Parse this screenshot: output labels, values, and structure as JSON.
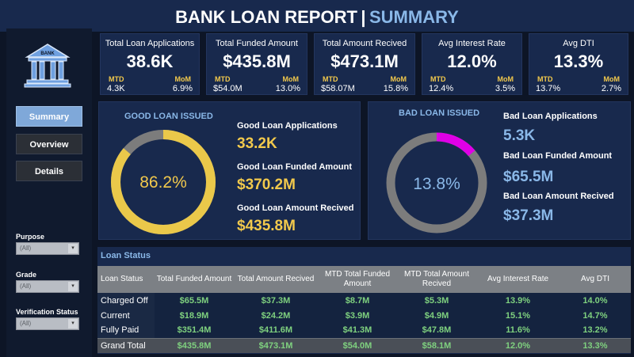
{
  "header": {
    "title": "BANK LOAN REPORT",
    "separator": "|",
    "subtitle": "SUMMARY"
  },
  "logo": {
    "text": "BANK"
  },
  "nav": [
    {
      "label": "Summary",
      "active": true
    },
    {
      "label": "Overview",
      "active": false
    },
    {
      "label": "Details",
      "active": false
    }
  ],
  "filters": [
    {
      "label": "Purpose",
      "value": "(All)"
    },
    {
      "label": "Grade",
      "value": "(All)"
    },
    {
      "label": "Verification Status",
      "value": "(All)"
    }
  ],
  "kpis": [
    {
      "title": "Total Loan Applications",
      "value": "38.6K",
      "mtd_label": "MTD",
      "mom_label": "MoM",
      "mtd": "4.3K",
      "mom": "6.9%"
    },
    {
      "title": "Total Funded Amount",
      "value": "$435.8M",
      "mtd_label": "MTD",
      "mom_label": "MoM",
      "mtd": "$54.0M",
      "mom": "13.0%"
    },
    {
      "title": "Total Amount Recived",
      "value": "$473.1M",
      "mtd_label": "MTD",
      "mom_label": "MoM",
      "mtd": "$58.07M",
      "mom": "15.8%"
    },
    {
      "title": "Avg Interest Rate",
      "value": "12.0%",
      "mtd_label": "MTD",
      "mom_label": "MoM",
      "mtd": "12.4%",
      "mom": "3.5%"
    },
    {
      "title": "Avg DTI",
      "value": "13.3%",
      "mtd_label": "MTD",
      "mom_label": "MoM",
      "mtd": "13.7%",
      "mom": "2.7%"
    }
  ],
  "good_loan": {
    "title": "GOOD LOAN ISSUED",
    "percent": 86.2,
    "percent_label": "86.2%",
    "applications_label": "Good Loan Applications",
    "applications": "33.2K",
    "funded_label": "Good Loan Funded Amount",
    "funded": "$370.2M",
    "received_label": "Good Loan Amount Recived",
    "received": "$435.8M"
  },
  "bad_loan": {
    "title": "BAD LOAN ISSUED",
    "percent": 13.8,
    "percent_label": "13.8%",
    "applications_label": "Bad Loan Applications",
    "applications": "5.3K",
    "funded_label": "Bad Loan Funded Amount",
    "funded": "$65.5M",
    "received_label": "Bad Loan Amount Recived",
    "received": "$37.3M"
  },
  "loan_status": {
    "title": "Loan Status",
    "columns": [
      "Loan Status",
      "Total Funded Amount",
      "Total Amount Recived",
      "MTD Total Funded Amount",
      "MTD Total  Amount Recived",
      "Avg Interest Rate",
      "Avg DTI"
    ],
    "rows": [
      [
        "Charged Off",
        "$65.5M",
        "$37.3M",
        "$8.7M",
        "$5.3M",
        "13.9%",
        "14.0%"
      ],
      [
        "Current",
        "$18.9M",
        "$24.2M",
        "$3.9M",
        "$4.9M",
        "15.1%",
        "14.7%"
      ],
      [
        "Fully Paid",
        "$351.4M",
        "$411.6M",
        "$41.3M",
        "$47.8M",
        "11.6%",
        "13.2%"
      ]
    ],
    "total": [
      "Grand Total",
      "$435.8M",
      "$473.1M",
      "$54.0M",
      "$58.1M",
      "12.0%",
      "13.3%"
    ]
  },
  "colors": {
    "good_ring": "#eac84a",
    "good_ring_rest": "#7c7c7c",
    "bad_ring": "#e000e6",
    "bad_ring_rest": "#7c7c7c"
  }
}
